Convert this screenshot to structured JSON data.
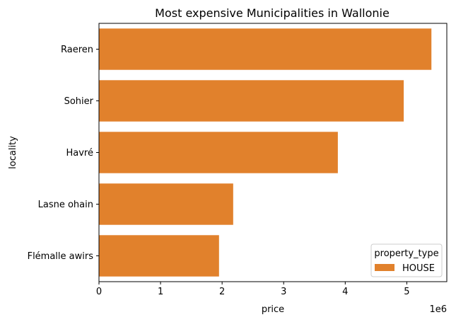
{
  "chart_data": {
    "type": "bar",
    "orientation": "horizontal",
    "title": "Most expensive Municipalities in Wallonie",
    "xlabel": "price",
    "ylabel": "locality",
    "x_scale_label": "1e6",
    "xlim": [
      0,
      5.65
    ],
    "x_ticks": [
      "0",
      "1",
      "2",
      "3",
      "4",
      "5"
    ],
    "categories": [
      "Raeren",
      "Sohier",
      "Havré",
      "Lasne ohain",
      "Flémalle awirs"
    ],
    "series": [
      {
        "name": "HOUSE",
        "values": [
          5.4,
          4.95,
          3.88,
          2.18,
          1.95
        ]
      }
    ],
    "legend": {
      "title": "property_type",
      "position": "lower-right"
    },
    "grid": false,
    "colors": {
      "bar": "#e1812c",
      "axis": "#000000"
    }
  }
}
